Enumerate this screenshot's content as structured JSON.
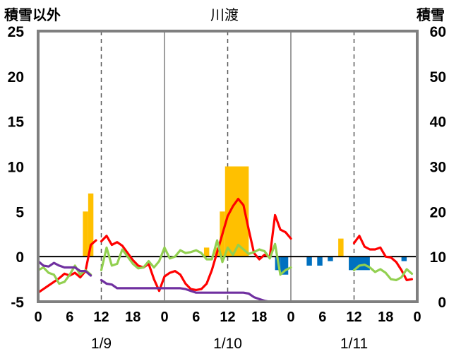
{
  "chart_data": {
    "type": "bar+line",
    "title": "川渡",
    "left_axis_label": "積雪以外",
    "right_axis_label": "積雪",
    "left_ylim": [
      -5,
      25
    ],
    "left_ticks": [
      -5,
      0,
      5,
      10,
      15,
      20,
      25
    ],
    "right_ylim": [
      0,
      60
    ],
    "right_ticks": [
      0,
      10,
      20,
      30,
      40,
      50,
      60
    ],
    "x_range_hours": [
      0,
      72
    ],
    "x_tick_values": [
      0,
      6,
      12,
      18,
      24,
      30,
      36,
      42,
      48,
      54,
      60,
      66,
      72
    ],
    "x_tick_labels": [
      "0",
      "6",
      "12",
      "18",
      "0",
      "6",
      "12",
      "18",
      "0",
      "6",
      "12",
      "18",
      "0"
    ],
    "day_labels": [
      {
        "label": "1/9",
        "hour": 12
      },
      {
        "label": "1/10",
        "hour": 36
      },
      {
        "label": "1/11",
        "hour": 60
      }
    ],
    "day_boundaries_hours": [
      24,
      48
    ],
    "grid": "dashed vertical at 12:00, solid vertical at 0:00",
    "series": [
      {
        "kind": "bar",
        "color": "#ffc000",
        "bars": [
          {
            "x0": 8.5,
            "x1": 9.5,
            "y": 5
          },
          {
            "x0": 9.5,
            "x1": 10.5,
            "y": 7
          },
          {
            "x0": 31.5,
            "x1": 32.5,
            "y": 1
          },
          {
            "x0": 33.5,
            "x1": 34.5,
            "y": 1
          },
          {
            "x0": 34.5,
            "x1": 35.5,
            "y": 5
          },
          {
            "x0": 35.5,
            "x1": 40,
            "y": 10
          },
          {
            "x0": 57,
            "x1": 58,
            "y": 2
          }
        ]
      },
      {
        "kind": "bar",
        "color": "#0070c0",
        "bars": [
          {
            "x0": 45,
            "x1": 46,
            "y": -1.5
          },
          {
            "x0": 46,
            "x1": 47.5,
            "y": -2
          },
          {
            "x0": 51,
            "x1": 52,
            "y": -1
          },
          {
            "x0": 53,
            "x1": 54,
            "y": -1
          },
          {
            "x0": 55,
            "x1": 56,
            "y": -0.5
          },
          {
            "x0": 59,
            "x1": 63,
            "y": -1.5
          },
          {
            "x0": 69,
            "x1": 70,
            "y": -0.5
          }
        ]
      },
      {
        "kind": "line",
        "color": "#ff0000",
        "segments": [
          [
            [
              0,
              -4
            ],
            [
              1,
              -3.6
            ],
            [
              2,
              -3.2
            ],
            [
              3,
              -2.8
            ],
            [
              4,
              -2.4
            ],
            [
              5,
              -1.9
            ],
            [
              6,
              -2.1
            ],
            [
              7,
              -1.8
            ],
            [
              8,
              -2.3
            ],
            [
              9,
              -1.6
            ],
            [
              10,
              1.3
            ],
            [
              11,
              1.8
            ]
          ],
          [
            [
              12,
              1.7
            ],
            [
              13,
              2.3
            ],
            [
              14,
              1.3
            ],
            [
              15,
              1.6
            ],
            [
              16,
              1.2
            ],
            [
              17,
              0.4
            ],
            [
              18,
              -0.4
            ],
            [
              19,
              -1.0
            ],
            [
              20,
              -1.2
            ],
            [
              21,
              -0.8
            ],
            [
              22,
              -2.5
            ],
            [
              23,
              -3.8
            ],
            [
              24,
              -2.2
            ],
            [
              25,
              -1.8
            ],
            [
              26,
              -1.6
            ],
            [
              27,
              -2.0
            ],
            [
              28,
              -3.0
            ],
            [
              29,
              -3.6
            ],
            [
              30,
              -3.7
            ],
            [
              31,
              -3.6
            ],
            [
              32,
              -3.0
            ],
            [
              33,
              -1.5
            ],
            [
              34,
              0.5
            ],
            [
              35,
              2.5
            ],
            [
              36,
              4.5
            ],
            [
              37,
              5.6
            ],
            [
              38,
              6.4
            ],
            [
              39,
              5.7
            ],
            [
              40,
              3.0
            ],
            [
              41,
              0.4
            ],
            [
              42,
              -0.3
            ],
            [
              43,
              0.2
            ],
            [
              44,
              0.0
            ],
            [
              45,
              4.6
            ],
            [
              46,
              3.0
            ],
            [
              47,
              2.7
            ],
            [
              48,
              2.0
            ]
          ],
          [
            [
              60,
              1.5
            ],
            [
              61,
              2.3
            ],
            [
              62,
              1.1
            ],
            [
              63,
              0.8
            ],
            [
              64,
              0.8
            ],
            [
              65,
              1.0
            ],
            [
              66,
              0.0
            ],
            [
              67,
              -0.1
            ],
            [
              68,
              -0.6
            ],
            [
              69,
              -1.5
            ],
            [
              70,
              -2.6
            ],
            [
              71,
              -2.5
            ]
          ]
        ]
      },
      {
        "kind": "line",
        "color": "#92d050",
        "segments": [
          [
            [
              0,
              -1.5
            ],
            [
              1,
              -1.2
            ],
            [
              2,
              -1.8
            ],
            [
              3,
              -2.0
            ],
            [
              4,
              -3.0
            ],
            [
              5,
              -2.8
            ],
            [
              6,
              -2.0
            ],
            [
              7,
              -1.0
            ],
            [
              8,
              -2.0
            ],
            [
              9,
              -1.5
            ],
            [
              10,
              -2.0
            ]
          ],
          [
            [
              12,
              -1.5
            ],
            [
              13,
              1.0
            ],
            [
              14,
              -1.0
            ],
            [
              15,
              -0.8
            ],
            [
              16,
              0.8
            ],
            [
              17,
              0.0
            ],
            [
              18,
              -0.8
            ],
            [
              19,
              -1.3
            ],
            [
              20,
              -1.2
            ],
            [
              21,
              -0.5
            ],
            [
              22,
              -1.2
            ],
            [
              23,
              -0.5
            ],
            [
              24,
              1.0
            ],
            [
              25,
              -0.2
            ],
            [
              26,
              0.0
            ],
            [
              27,
              0.7
            ],
            [
              28,
              0.4
            ],
            [
              29,
              0.5
            ],
            [
              30,
              0.7
            ],
            [
              31,
              0.4
            ],
            [
              32,
              -0.3
            ],
            [
              33,
              -0.3
            ],
            [
              34,
              1.8
            ],
            [
              35,
              -0.6
            ],
            [
              36,
              1.0
            ],
            [
              37,
              0.2
            ],
            [
              38,
              1.3
            ],
            [
              39,
              0.8
            ],
            [
              40,
              0.3
            ],
            [
              41,
              0.5
            ],
            [
              42,
              0.8
            ],
            [
              43,
              0.6
            ],
            [
              44,
              -0.2
            ],
            [
              45,
              1.4
            ],
            [
              46,
              -2.0
            ],
            [
              47,
              -1.5
            ],
            [
              48,
              -1.2
            ]
          ],
          [
            [
              60,
              -1.5
            ],
            [
              61,
              -1.0
            ],
            [
              62,
              -0.9
            ],
            [
              63,
              -1.2
            ],
            [
              64,
              -1.7
            ],
            [
              65,
              -1.4
            ],
            [
              66,
              -1.8
            ],
            [
              67,
              -2.5
            ],
            [
              68,
              -2.6
            ],
            [
              69,
              -2.3
            ],
            [
              70,
              -1.4
            ],
            [
              71,
              -1.9
            ]
          ]
        ]
      },
      {
        "kind": "line",
        "color": "#7030a0",
        "segments": [
          [
            [
              0,
              -0.5
            ],
            [
              1,
              -1.0
            ],
            [
              2,
              -1.1
            ],
            [
              3,
              -0.7
            ],
            [
              4,
              -1.0
            ],
            [
              5,
              -1.2
            ],
            [
              6,
              -1.2
            ],
            [
              7,
              -1.2
            ],
            [
              8,
              -1.6
            ],
            [
              9,
              -1.6
            ],
            [
              10,
              -2.1
            ]
          ],
          [
            [
              12,
              -2.6
            ],
            [
              13,
              -3.0
            ],
            [
              14,
              -3.1
            ],
            [
              15,
              -3.5
            ],
            [
              16,
              -3.5
            ],
            [
              17,
              -3.5
            ],
            [
              18,
              -3.5
            ],
            [
              19,
              -3.5
            ],
            [
              20,
              -3.5
            ],
            [
              21,
              -3.5
            ],
            [
              22,
              -3.5
            ],
            [
              23,
              -3.5
            ],
            [
              24,
              -3.5
            ],
            [
              25,
              -3.5
            ],
            [
              26,
              -3.5
            ],
            [
              27,
              -3.5
            ],
            [
              28,
              -3.6
            ],
            [
              29,
              -3.8
            ],
            [
              30,
              -4.0
            ],
            [
              31,
              -4.0
            ],
            [
              32,
              -4.0
            ],
            [
              33,
              -4.0
            ],
            [
              34,
              -4.0
            ],
            [
              35,
              -4.0
            ],
            [
              36,
              -4.0
            ],
            [
              37,
              -4.0
            ],
            [
              38,
              -4.0
            ],
            [
              39,
              -4.0
            ],
            [
              40,
              -4.1
            ],
            [
              41,
              -4.5
            ],
            [
              42,
              -4.7
            ],
            [
              43,
              -4.9
            ],
            [
              44,
              -5.0
            ],
            [
              45,
              -5.0
            ],
            [
              46,
              -5.0
            ],
            [
              47,
              -5.0
            ],
            [
              48,
              -5.0
            ]
          ],
          [
            [
              60,
              -5.0
            ],
            [
              62,
              -5.0
            ],
            [
              64,
              -5.0
            ],
            [
              66,
              -5.0
            ],
            [
              68,
              -5.0
            ],
            [
              70,
              -5.0
            ],
            [
              72,
              -5.0
            ]
          ]
        ]
      }
    ]
  }
}
